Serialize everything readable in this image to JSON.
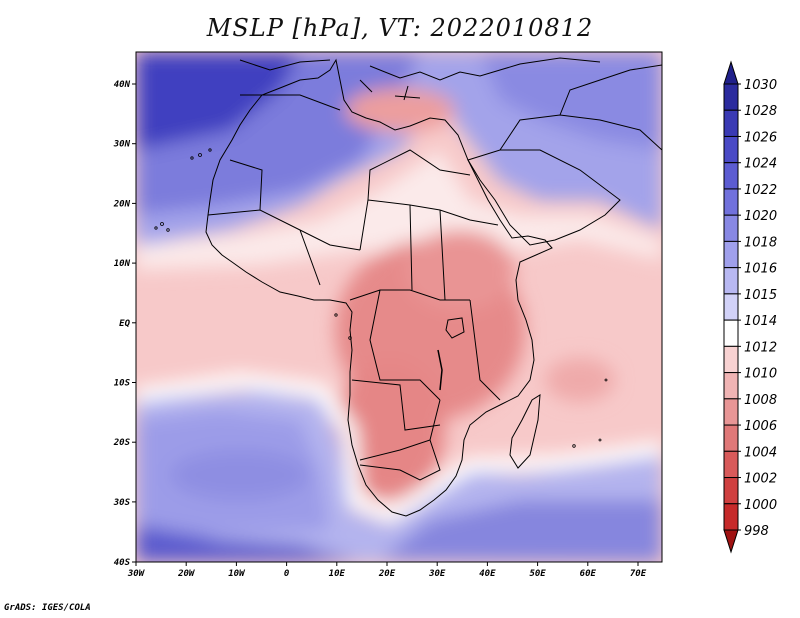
{
  "title": "MSLP [hPa], VT: 2022010812",
  "credit": "GrADS: IGES/COLA",
  "axes": {
    "lon_labels": [
      "30W",
      "20W",
      "10W",
      "0",
      "10E",
      "20E",
      "30E",
      "40E",
      "50E",
      "60E",
      "70E"
    ],
    "lat_labels": [
      "40N",
      "30N",
      "20N",
      "10N",
      "EQ",
      "10S",
      "20S",
      "30S",
      "40S"
    ]
  },
  "colorbar": {
    "levels": [
      "1030",
      "1028",
      "1026",
      "1024",
      "1022",
      "1020",
      "1018",
      "1016",
      "1015",
      "1014",
      "1012",
      "1010",
      "1008",
      "1006",
      "1004",
      "1002",
      "1000",
      "998"
    ],
    "colors": [
      "#2b2b9e",
      "#3a3ab4",
      "#4a4ac6",
      "#5c5cd2",
      "#7171dc",
      "#8888e4",
      "#a0a0ec",
      "#b8b8f2",
      "#d2d2f8",
      "#ffffff",
      "#f8d2d2",
      "#f0b4b4",
      "#e89696",
      "#e07878",
      "#d85a5a",
      "#cf4040",
      "#c62a2a",
      "#b01616"
    ],
    "top_color": "#20208a",
    "bottom_color": "#a01212"
  }
}
